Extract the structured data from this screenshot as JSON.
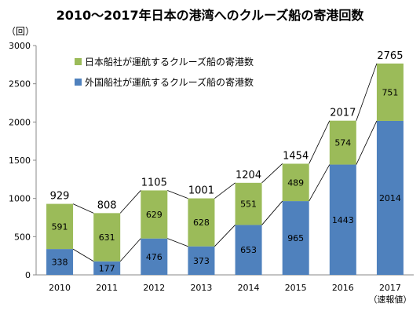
{
  "chart_data": {
    "type": "bar",
    "stacked": true,
    "title": "2010～2017年日本の港湾へのクルーズ船の寄港回数",
    "ylabel": "（回）",
    "xlabel": "",
    "categories": [
      "2010",
      "2011",
      "2012",
      "2013",
      "2014",
      "2015",
      "2016",
      "2017"
    ],
    "category_note": "（速報値）",
    "ylim": [
      0,
      3000
    ],
    "yticks": [
      0,
      500,
      1000,
      1500,
      2000,
      2500,
      3000
    ],
    "series": [
      {
        "name": "外国船社が運航するクルーズ船の寄港数",
        "color": "#4f81bd",
        "values": [
          338,
          177,
          476,
          373,
          653,
          965,
          1443,
          2014
        ]
      },
      {
        "name": "日本船社が運航するクルーズ船の寄港数",
        "color": "#9bbb59",
        "values": [
          591,
          631,
          629,
          628,
          551,
          489,
          574,
          751
        ]
      }
    ],
    "totals": [
      929,
      808,
      1105,
      1001,
      1204,
      1454,
      2017,
      2765
    ],
    "legend_position": "top-left",
    "grid": false,
    "connector_lines": true
  }
}
